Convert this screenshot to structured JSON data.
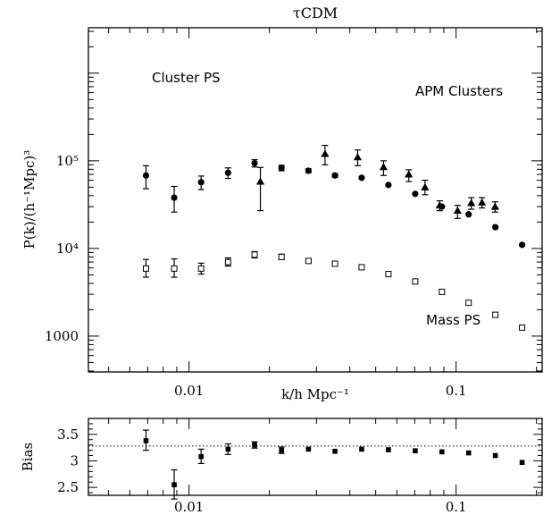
{
  "chart_data": [
    {
      "type": "scatter",
      "title": "τCDM",
      "xlabel": "k/h Mpc⁻¹",
      "ylabel": "P(k)/(h⁻¹Mpc)³",
      "xscale": "log",
      "yscale": "log",
      "xlim": [
        0.0042,
        0.21
      ],
      "ylim": [
        390,
        3300000
      ],
      "xticklabels": [
        {
          "value": 0.01,
          "label": "0.01"
        },
        {
          "value": 0.1,
          "label": "0.1"
        }
      ],
      "yticklabels": [
        {
          "value": 1000,
          "label": "1000"
        },
        {
          "value": 10000,
          "label": "10⁴"
        },
        {
          "value": 100000,
          "label": "10⁵"
        }
      ],
      "annotations": [
        {
          "text": "Cluster PS",
          "series": "Cluster PS"
        },
        {
          "text": "APM Clusters",
          "series": "APM Clusters"
        },
        {
          "text": "Mass PS",
          "series": "Mass PS"
        }
      ],
      "series": [
        {
          "name": "Cluster PS",
          "marker": "filled-circle",
          "points": [
            {
              "x": 0.0069,
              "y": 68000,
              "lo": 48000,
              "hi": 88000
            },
            {
              "x": 0.0088,
              "y": 38000,
              "lo": 26000,
              "hi": 51000
            },
            {
              "x": 0.0111,
              "y": 57000,
              "lo": 47000,
              "hi": 67000
            },
            {
              "x": 0.014,
              "y": 73000,
              "lo": 63000,
              "hi": 83000
            },
            {
              "x": 0.0176,
              "y": 94000,
              "lo": 85000,
              "hi": 103000
            },
            {
              "x": 0.0222,
              "y": 83000,
              "lo": 77000,
              "hi": 89000
            },
            {
              "x": 0.028,
              "y": 77000,
              "lo": 73000,
              "hi": 81000
            },
            {
              "x": 0.0352,
              "y": 68000,
              "lo": 65000,
              "hi": 71000
            },
            {
              "x": 0.0443,
              "y": 64000
            },
            {
              "x": 0.0558,
              "y": 53000
            },
            {
              "x": 0.0703,
              "y": 42000
            },
            {
              "x": 0.0885,
              "y": 30000
            },
            {
              "x": 0.1114,
              "y": 24500
            },
            {
              "x": 0.1403,
              "y": 17500
            },
            {
              "x": 0.1767,
              "y": 11000
            }
          ]
        },
        {
          "name": "APM Clusters",
          "marker": "filled-triangle",
          "points": [
            {
              "x": 0.0185,
              "y": 58000,
              "lo": 27000,
              "hi": 84000
            },
            {
              "x": 0.0323,
              "y": 120000,
              "lo": 90000,
              "hi": 150000
            },
            {
              "x": 0.0428,
              "y": 110000,
              "lo": 88000,
              "hi": 133000
            },
            {
              "x": 0.0535,
              "y": 85000,
              "lo": 68000,
              "hi": 100000
            },
            {
              "x": 0.0665,
              "y": 70000,
              "lo": 58000,
              "hi": 79000
            },
            {
              "x": 0.0765,
              "y": 50000,
              "lo": 41000,
              "hi": 60000
            },
            {
              "x": 0.0868,
              "y": 31000,
              "lo": 27000,
              "hi": 35000
            },
            {
              "x": 0.1013,
              "y": 27000,
              "lo": 22000,
              "hi": 31000
            },
            {
              "x": 0.114,
              "y": 33000,
              "lo": 28000,
              "hi": 38000
            },
            {
              "x": 0.125,
              "y": 33500,
              "lo": 29000,
              "hi": 38000
            },
            {
              "x": 0.14,
              "y": 30000,
              "lo": 26000,
              "hi": 34000
            }
          ]
        },
        {
          "name": "Mass PS",
          "marker": "open-square",
          "points": [
            {
              "x": 0.0069,
              "y": 5900,
              "lo": 4700,
              "hi": 7500
            },
            {
              "x": 0.0088,
              "y": 5900,
              "lo": 4700,
              "hi": 7600
            },
            {
              "x": 0.0111,
              "y": 5900,
              "lo": 5100,
              "hi": 6800
            },
            {
              "x": 0.014,
              "y": 7000,
              "lo": 6300,
              "hi": 7800
            },
            {
              "x": 0.0176,
              "y": 8500,
              "lo": 7800,
              "hi": 9200
            },
            {
              "x": 0.0222,
              "y": 8000,
              "lo": 7500,
              "hi": 8600
            },
            {
              "x": 0.028,
              "y": 7200,
              "lo": 6900,
              "hi": 7500
            },
            {
              "x": 0.0352,
              "y": 6700
            },
            {
              "x": 0.0443,
              "y": 6100
            },
            {
              "x": 0.0558,
              "y": 5100
            },
            {
              "x": 0.0703,
              "y": 4200
            },
            {
              "x": 0.0885,
              "y": 3200
            },
            {
              "x": 0.1114,
              "y": 2400
            },
            {
              "x": 0.1403,
              "y": 1750
            },
            {
              "x": 0.1767,
              "y": 1250
            }
          ]
        }
      ]
    },
    {
      "type": "scatter",
      "xlabel": "",
      "ylabel": "Bias",
      "xscale": "log",
      "xlim": [
        0.0042,
        0.21
      ],
      "ylim": [
        2.35,
        3.8
      ],
      "xticklabels": [
        {
          "value": 0.01,
          "label": "0.01"
        },
        {
          "value": 0.1,
          "label": "0.1"
        }
      ],
      "yticklabels": [
        {
          "value": 2.5,
          "label": "2.5"
        },
        {
          "value": 3,
          "label": "3"
        },
        {
          "value": 3.5,
          "label": "3.5"
        }
      ],
      "reference_line": {
        "y": 3.28,
        "style": "dotted"
      },
      "series": [
        {
          "marker": "filled-square",
          "points": [
            {
              "x": 0.0069,
              "y": 3.38,
              "lo": 3.2,
              "hi": 3.58
            },
            {
              "x": 0.0088,
              "y": 2.55,
              "lo": 2.28,
              "hi": 2.83
            },
            {
              "x": 0.0111,
              "y": 3.08,
              "lo": 2.95,
              "hi": 3.22
            },
            {
              "x": 0.014,
              "y": 3.22,
              "lo": 3.12,
              "hi": 3.32
            },
            {
              "x": 0.0176,
              "y": 3.3,
              "lo": 3.24,
              "hi": 3.36
            },
            {
              "x": 0.0222,
              "y": 3.2,
              "lo": 3.14,
              "hi": 3.26
            },
            {
              "x": 0.028,
              "y": 3.22
            },
            {
              "x": 0.0352,
              "y": 3.18
            },
            {
              "x": 0.0443,
              "y": 3.22
            },
            {
              "x": 0.0558,
              "y": 3.21
            },
            {
              "x": 0.0703,
              "y": 3.19
            },
            {
              "x": 0.0885,
              "y": 3.17
            },
            {
              "x": 0.1114,
              "y": 3.15
            },
            {
              "x": 0.1403,
              "y": 3.1
            },
            {
              "x": 0.1767,
              "y": 2.97
            }
          ]
        }
      ]
    }
  ]
}
